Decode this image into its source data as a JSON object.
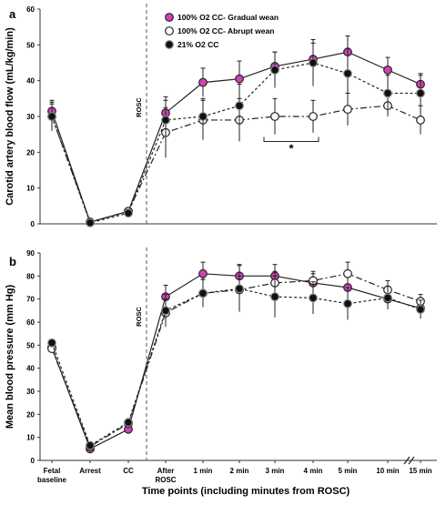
{
  "figure": {
    "xlabel": "Time points (including minutes from ROSC)",
    "categories": [
      "Fetal baseline",
      "Arrest",
      "CC",
      "After ROSC",
      "1 min",
      "2 min",
      "3 min",
      "4 min",
      "5 min",
      "10 min",
      "15 min"
    ],
    "rosc_label": "ROSC",
    "colors": {
      "gradual": "#d63fb8",
      "abrupt": "#ffffff",
      "cc21": "#111111",
      "axis": "#333333"
    }
  },
  "chart_data": [
    {
      "type": "line",
      "panel": "a",
      "title": "",
      "xlabel": "Time points (including minutes from ROSC)",
      "ylabel": "Carotid artery blood flow (mL/kg/min)",
      "ylim": [
        0,
        60
      ],
      "yticks": [
        0,
        10,
        20,
        30,
        40,
        50,
        60
      ],
      "grid": false,
      "legend_position": "top-right",
      "annotation": "*",
      "categories": [
        "Fetal baseline",
        "Arrest",
        "CC",
        "After ROSC",
        "1 min",
        "2 min",
        "3 min",
        "4 min",
        "5 min",
        "10 min",
        "15 min"
      ],
      "series": [
        {
          "name": "100% O2 CC- Gradual wean",
          "values": [
            31.5,
            0.5,
            3.5,
            31,
            39.5,
            40.5,
            44,
            46,
            48,
            43,
            39
          ],
          "errors": [
            3,
            0.5,
            1,
            4.5,
            4,
            5,
            4,
            4.5,
            4.5,
            3.5,
            3
          ]
        },
        {
          "name": "100% O2 CC- Abrupt wean",
          "values": [
            30,
            0.5,
            3.5,
            25.5,
            29,
            29,
            30,
            30,
            32,
            33,
            29
          ],
          "errors": [
            4,
            0.5,
            1,
            7,
            5.5,
            6,
            5,
            4.5,
            4.5,
            3,
            4
          ]
        },
        {
          "name": "21% O2 CC",
          "values": [
            30,
            0.3,
            3,
            29,
            30,
            33,
            43,
            45,
            42,
            36.5,
            36.5
          ],
          "errors": [
            3.5,
            0.5,
            1,
            5.5,
            5,
            6,
            5,
            6.5,
            7,
            5,
            5
          ]
        }
      ]
    },
    {
      "type": "line",
      "panel": "b",
      "title": "",
      "xlabel": "Time points (including minutes from ROSC)",
      "ylabel": "Mean blood pressure (mm Hg)",
      "ylim": [
        0,
        90
      ],
      "yticks": [
        0,
        10,
        20,
        30,
        40,
        50,
        60,
        70,
        80,
        90
      ],
      "grid": false,
      "categories": [
        "Fetal baseline",
        "Arrest",
        "CC",
        "After ROSC",
        "1 min",
        "2 min",
        "3 min",
        "4 min",
        "5 min",
        "10 min",
        "15 min"
      ],
      "series": [
        {
          "name": "100% O2 CC- Gradual wean",
          "values": [
            49,
            5,
            13.5,
            71,
            81,
            80,
            80,
            77,
            75,
            70,
            66
          ],
          "errors": [
            1,
            1,
            1,
            5,
            5,
            5,
            5,
            4,
            5,
            4,
            3
          ]
        },
        {
          "name": "100% O2 CC- Abrupt wean",
          "values": [
            48.5,
            6,
            16,
            64,
            72.5,
            74,
            77,
            78,
            81,
            74,
            69
          ],
          "errors": [
            1,
            1,
            1,
            6,
            6,
            6,
            5,
            4,
            5,
            4,
            3
          ]
        },
        {
          "name": "21% O2 CC",
          "values": [
            51,
            6.5,
            16.5,
            65,
            72.5,
            74.5,
            71,
            70.5,
            68,
            70.5,
            65.5
          ],
          "errors": [
            1,
            1,
            1,
            7,
            6,
            10,
            9,
            7,
            7,
            5,
            4
          ]
        }
      ]
    }
  ]
}
